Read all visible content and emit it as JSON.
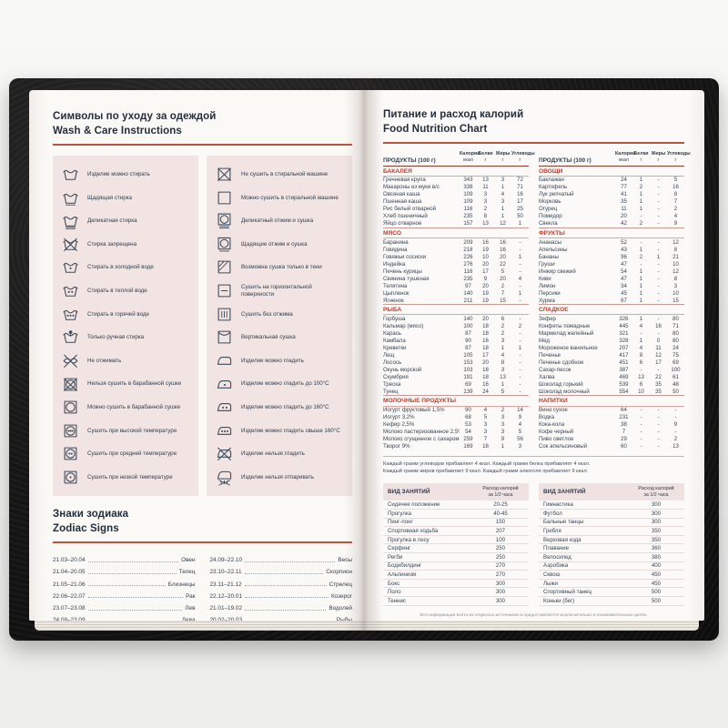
{
  "accent_color": "#b5402f",
  "left_page": {
    "care_title_ru": "Символы по уходу за одеждой",
    "care_title_en": "Wash & Care Instructions",
    "care_items_col1": [
      {
        "icon": "washtub-icon",
        "label": "Изделие можно стирать"
      },
      {
        "icon": "washtub-underline-icon",
        "label": "Щадящая стирка"
      },
      {
        "icon": "washtub-double-underline-icon",
        "label": "Деликатная стирка"
      },
      {
        "icon": "no-wash-icon",
        "label": "Стирка запрещена"
      },
      {
        "icon": "wash-cold-icon",
        "label": "Стирать в холодной воде"
      },
      {
        "icon": "wash-warm-icon",
        "label": "Стирать в теплой воде"
      },
      {
        "icon": "wash-hot-icon",
        "label": "Стирать в горячей воде"
      },
      {
        "icon": "hand-wash-icon",
        "label": "Только ручная стирка"
      },
      {
        "icon": "no-wring-icon",
        "label": "Не отжимать"
      },
      {
        "icon": "no-tumble-dry-icon",
        "label": "Нельзя сушить в барабанной сушке"
      },
      {
        "icon": "tumble-dry-icon",
        "label": "Можно сушить в барабанной сушке"
      },
      {
        "icon": "tumble-dry-high-icon",
        "label": "Сушить при высокой температуре"
      },
      {
        "icon": "tumble-dry-medium-icon",
        "label": "Сушить при средней температуре"
      },
      {
        "icon": "tumble-dry-low-icon",
        "label": "Сушить при низкой температуре"
      }
    ],
    "care_items_col2": [
      {
        "icon": "no-machine-dry-icon",
        "label": "Не сушить в стиральной машине"
      },
      {
        "icon": "machine-dry-icon",
        "label": "Можно сушить в стиральной машине"
      },
      {
        "icon": "delicate-spin-icon",
        "label": "Деликатный отжим и сушка"
      },
      {
        "icon": "gentle-spin-icon",
        "label": "Щадящие отжим и сушка"
      },
      {
        "icon": "shade-dry-icon",
        "label": "Возможна сушка только в тени"
      },
      {
        "icon": "flat-dry-icon",
        "label": "Сушить на горизонтальной поверхности"
      },
      {
        "icon": "drip-dry-icon",
        "label": "Сушить без отжима"
      },
      {
        "icon": "vertical-dry-icon",
        "label": "Вертикальная сушка"
      },
      {
        "icon": "iron-icon",
        "label": "Изделие можно гладить"
      },
      {
        "icon": "iron-low-icon",
        "label": "Изделие можно гладить до 100°C"
      },
      {
        "icon": "iron-medium-icon",
        "label": "Изделие можно гладить до 160°C"
      },
      {
        "icon": "iron-high-icon",
        "label": "Изделие можно гладить свыше 160°C"
      },
      {
        "icon": "no-iron-icon",
        "label": "Изделие нельзя гладить"
      },
      {
        "icon": "no-steam-icon",
        "label": "Изделие нельзя отпаривать"
      }
    ],
    "zodiac_title_ru": "Знаки зодиака",
    "zodiac_title_en": "Zodiac Signs",
    "zodiac_col1": [
      {
        "dates": "21.03–20.04",
        "sign": "Овен"
      },
      {
        "dates": "21.04–20.05",
        "sign": "Телец"
      },
      {
        "dates": "21.05–21.06",
        "sign": "Близнецы"
      },
      {
        "dates": "22.06–22.07",
        "sign": "Рак"
      },
      {
        "dates": "23.07–23.08",
        "sign": "Лев"
      },
      {
        "dates": "24.08–23.09",
        "sign": "Дева"
      }
    ],
    "zodiac_col2": [
      {
        "dates": "24.09–22.10",
        "sign": "Весы"
      },
      {
        "dates": "23.10–22.11",
        "sign": "Скорпион"
      },
      {
        "dates": "23.11–21.12",
        "sign": "Стрелец"
      },
      {
        "dates": "22.12–20.01",
        "sign": "Козерог"
      },
      {
        "dates": "21.01–19.02",
        "sign": "Водолей"
      },
      {
        "dates": "20.02–20.03",
        "sign": "Рыбы"
      }
    ]
  },
  "right_page": {
    "nutrition_title_ru": "Питание и расход калорий",
    "nutrition_title_en": "Food Nutrition Chart",
    "table_header": {
      "products": "ПРОДУКТЫ (100 г)",
      "columns": [
        {
          "name": "Калории",
          "unit": "ккал"
        },
        {
          "name": "Белки",
          "unit": "г"
        },
        {
          "name": "Жиры",
          "unit": "г"
        },
        {
          "name": "Углеводы",
          "unit": "г"
        }
      ]
    },
    "food_left_sections": [
      {
        "title": "БАКАЛЕЯ",
        "rows": [
          [
            "Гречневая крупа",
            "343",
            "13",
            "3",
            "72"
          ],
          [
            "Макароны из муки в/с",
            "338",
            "11",
            "1",
            "71"
          ],
          [
            "Овсяная каша",
            "109",
            "3",
            "4",
            "16"
          ],
          [
            "Пшенная каша",
            "109",
            "3",
            "3",
            "17"
          ],
          [
            "Рис белый отварной",
            "116",
            "2",
            "1",
            "25"
          ],
          [
            "Хлеб пшеничный",
            "235",
            "8",
            "1",
            "50"
          ],
          [
            "Яйцо отварное",
            "157",
            "13",
            "12",
            "1"
          ]
        ]
      },
      {
        "title": "МЯСО",
        "rows": [
          [
            "Баранина",
            "209",
            "16",
            "16",
            "-"
          ],
          [
            "Говядина",
            "218",
            "19",
            "16",
            "-"
          ],
          [
            "Говяжьи сосиски",
            "226",
            "10",
            "20",
            "1"
          ],
          [
            "Индейка",
            "276",
            "20",
            "22",
            "-"
          ],
          [
            "Печень курицы",
            "116",
            "17",
            "5",
            "-"
          ],
          [
            "Свинина тушеная",
            "235",
            "9",
            "20",
            "4"
          ],
          [
            "Телятина",
            "97",
            "20",
            "2",
            "-"
          ],
          [
            "Цыпленок",
            "140",
            "19",
            "7",
            "1"
          ],
          [
            "Ягненок",
            "211",
            "19",
            "15",
            "-"
          ]
        ]
      },
      {
        "title": "РЫБА",
        "rows": [
          [
            "Горбуша",
            "140",
            "20",
            "6",
            "-"
          ],
          [
            "Кальмар (мясо)",
            "100",
            "18",
            "2",
            "2"
          ],
          [
            "Карась",
            "87",
            "18",
            "2",
            "-"
          ],
          [
            "Камбала",
            "90",
            "16",
            "3",
            "-"
          ],
          [
            "Креветки",
            "87",
            "18",
            "1",
            "1"
          ],
          [
            "Лещ",
            "105",
            "17",
            "4",
            "-"
          ],
          [
            "Лосось",
            "153",
            "20",
            "8",
            "-"
          ],
          [
            "Окунь морской",
            "103",
            "18",
            "3",
            "-"
          ],
          [
            "Скумбрия",
            "191",
            "18",
            "13",
            "-"
          ],
          [
            "Треска",
            "69",
            "16",
            "1",
            "-"
          ],
          [
            "Тунец",
            "139",
            "24",
            "5",
            "-"
          ]
        ]
      },
      {
        "title": "МОЛОЧНЫЕ ПРОДУКТЫ",
        "rows": [
          [
            "Йогурт фруктовый 1,5%",
            "90",
            "4",
            "2",
            "14"
          ],
          [
            "Йогурт 3,2%",
            "68",
            "5",
            "3",
            "9"
          ],
          [
            "Кефир 2,5%",
            "53",
            "3",
            "3",
            "4"
          ],
          [
            "Молоко пастеризованное 2,5%",
            "54",
            "3",
            "3",
            "5"
          ],
          [
            "Молоко сгущенное с сахаром",
            "259",
            "7",
            "9",
            "56"
          ],
          [
            "Творог 9%",
            "169",
            "18",
            "1",
            "3"
          ]
        ]
      }
    ],
    "food_right_sections": [
      {
        "title": "ОВОЩИ",
        "rows": [
          [
            "Баклажан",
            "24",
            "1",
            "-",
            "5"
          ],
          [
            "Картофель",
            "77",
            "2",
            "-",
            "16"
          ],
          [
            "Лук репчатый",
            "41",
            "1",
            "-",
            "8"
          ],
          [
            "Морковь",
            "35",
            "1",
            "-",
            "7"
          ],
          [
            "Огурец",
            "11",
            "1",
            "-",
            "2"
          ],
          [
            "Помидор",
            "20",
            "-",
            "-",
            "4"
          ],
          [
            "Свекла",
            "42",
            "2",
            "-",
            "9"
          ]
        ]
      },
      {
        "title": "ФРУКТЫ",
        "rows": [
          [
            "Ананасы",
            "52",
            "-",
            "-",
            "12"
          ],
          [
            "Апельсины",
            "43",
            "1",
            "-",
            "8"
          ],
          [
            "Бананы",
            "96",
            "2",
            "1",
            "21"
          ],
          [
            "Груши",
            "47",
            "-",
            "-",
            "10"
          ],
          [
            "Инжир свежий",
            "54",
            "1",
            "-",
            "12"
          ],
          [
            "Киви",
            "47",
            "1",
            "-",
            "8"
          ],
          [
            "Лимон",
            "34",
            "1",
            "-",
            "3"
          ],
          [
            "Персики",
            "45",
            "1",
            "-",
            "10"
          ],
          [
            "Хурма",
            "67",
            "1",
            "-",
            "15"
          ]
        ]
      },
      {
        "title": "СЛАДКОЕ",
        "rows": [
          [
            "Зефир",
            "326",
            "1",
            "-",
            "80"
          ],
          [
            "Конфеты помадные",
            "445",
            "4",
            "16",
            "71"
          ],
          [
            "Мармелад желейный",
            "321",
            "-",
            "-",
            "80"
          ],
          [
            "Мед",
            "328",
            "1",
            "0",
            "80"
          ],
          [
            "Мороженое ванильное",
            "207",
            "4",
            "11",
            "24"
          ],
          [
            "Печенье",
            "417",
            "8",
            "12",
            "75"
          ],
          [
            "Печенье сдобное",
            "451",
            "6",
            "17",
            "69"
          ],
          [
            "Сахар-песок",
            "387",
            "-",
            "-",
            "100"
          ],
          [
            "Халва",
            "469",
            "13",
            "22",
            "61"
          ],
          [
            "Шоколад горький",
            "539",
            "6",
            "35",
            "48"
          ],
          [
            "Шоколад молочный",
            "554",
            "10",
            "35",
            "50"
          ]
        ]
      },
      {
        "title": "НАПИТКИ",
        "rows": [
          [
            "Вино сухое",
            "64",
            "-",
            "-",
            "-"
          ],
          [
            "Водка",
            "231",
            "-",
            "-",
            "-"
          ],
          [
            "Кока-кола",
            "38",
            "-",
            "-",
            "9"
          ],
          [
            "Кофе черный",
            "7",
            "-",
            "-",
            "-"
          ],
          [
            "Пиво светлое",
            "29",
            "-",
            "-",
            "2"
          ],
          [
            "Сок апельсиновый",
            "60",
            "-",
            "-",
            "13"
          ]
        ]
      }
    ],
    "note_lines": [
      "Каждый грамм углеводов прибавляет 4 ккал. Каждый грамм белка прибавляет 4 ккал.",
      "Каждый грамм жиров прибавляет 9 ккал. Каждый грамм алкоголя прибавляет 9 ккал."
    ],
    "activity_header": {
      "label": "ВИД ЗАНЯТИЙ",
      "value_line1": "Расход калорий",
      "value_line2": "за 1/2 часа"
    },
    "activity_col1": [
      [
        "Сидячее положение",
        "20-25"
      ],
      [
        "Прогулка",
        "40-45"
      ],
      [
        "Пинг-понг",
        "150"
      ],
      [
        "Спортивная ходьба",
        "207"
      ],
      [
        "Прогулка в лесу",
        "100"
      ],
      [
        "Серфинг",
        "250"
      ],
      [
        "Регби",
        "250"
      ],
      [
        "Бодибилдинг",
        "270"
      ],
      [
        "Альпинизм",
        "270"
      ],
      [
        "Бокс",
        "300"
      ],
      [
        "Поло",
        "300"
      ],
      [
        "Теннис",
        "300"
      ]
    ],
    "activity_col2": [
      [
        "Гимнастика",
        "300"
      ],
      [
        "Футбол",
        "300"
      ],
      [
        "Бальные танцы",
        "300"
      ],
      [
        "Гребля",
        "350"
      ],
      [
        "Верховая езда",
        "350"
      ],
      [
        "Плавание",
        "360"
      ],
      [
        "Велосипед",
        "380"
      ],
      [
        "Аэробика",
        "400"
      ],
      [
        "Сквош",
        "450"
      ],
      [
        "Лыжи",
        "450"
      ],
      [
        "Спортивный танец",
        "500"
      ],
      [
        "Коньки (бег)",
        "500"
      ]
    ],
    "footer": "Вся информация взята из открытых источников и предоставляется исключительно в ознакомительных целях."
  }
}
